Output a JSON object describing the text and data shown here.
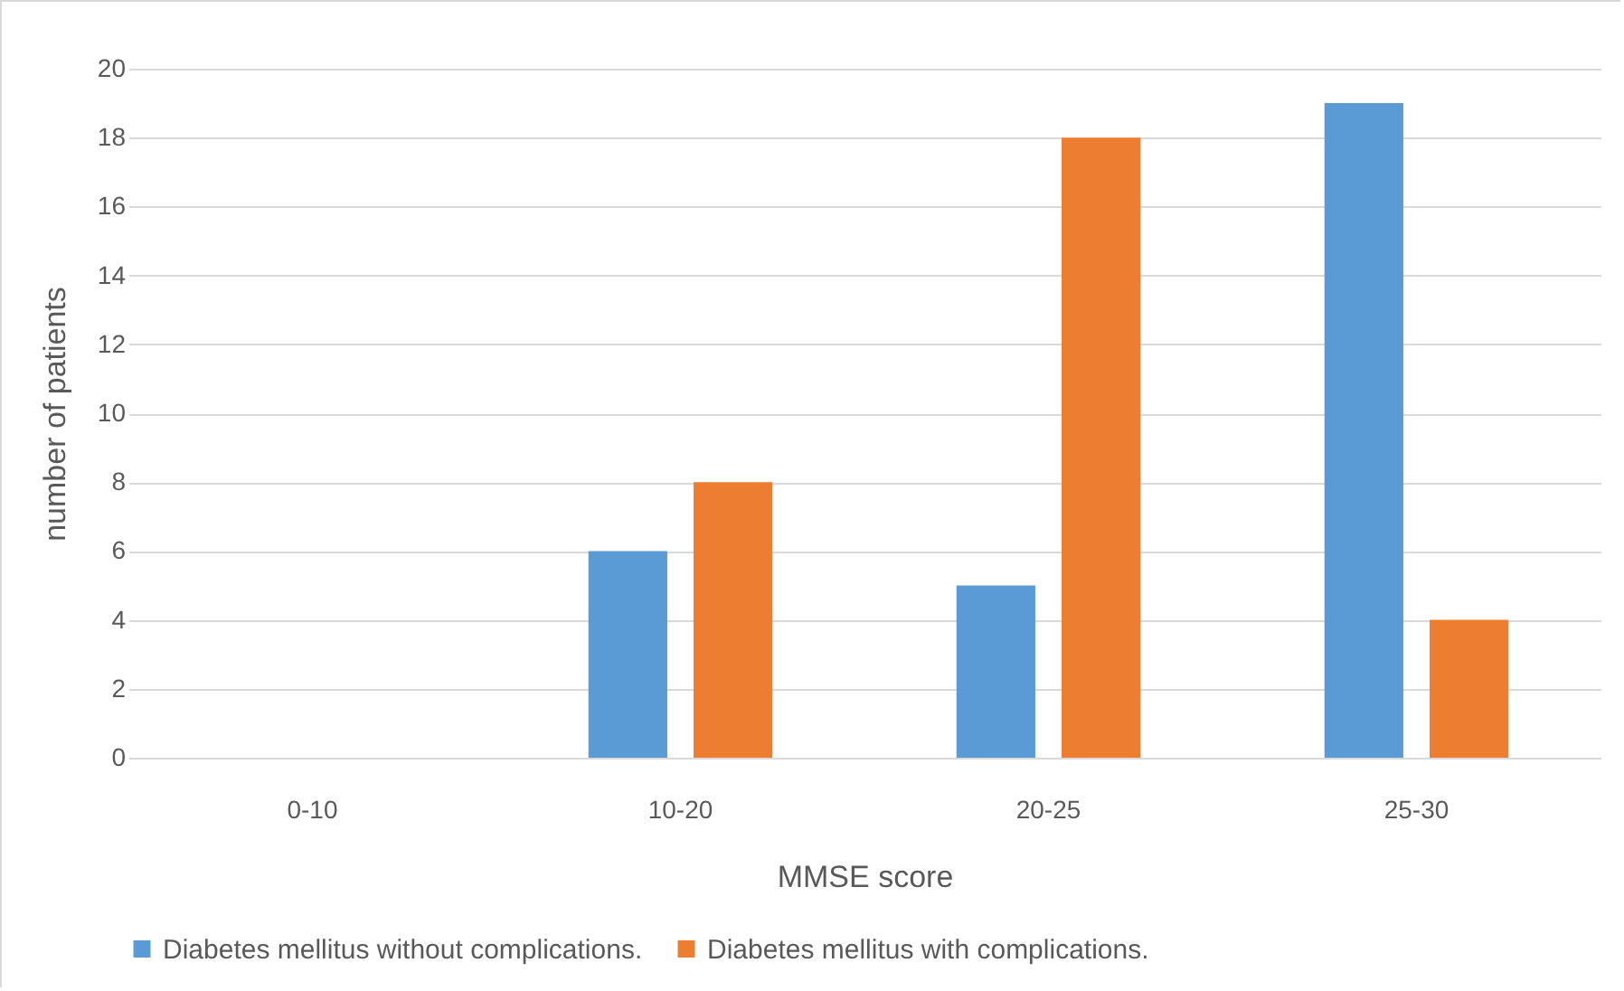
{
  "chart_data": {
    "type": "bar",
    "xlabel": "MMSE score",
    "ylabel": "number of patients",
    "categories": [
      "0-10",
      "10-20",
      "20-25",
      "25-30"
    ],
    "series": [
      {
        "name": "Diabetes mellitus without complications.",
        "color": "#5b9bd5",
        "values": [
          0,
          6,
          5,
          19
        ]
      },
      {
        "name": "Diabetes mellitus with complications.",
        "color": "#ed7d31",
        "values": [
          0,
          8,
          18,
          4
        ]
      }
    ],
    "ylim": [
      0,
      20
    ],
    "yticks": [
      0,
      2,
      4,
      6,
      8,
      10,
      12,
      14,
      16,
      18,
      20
    ],
    "grid": "y",
    "legend": "bottom"
  }
}
